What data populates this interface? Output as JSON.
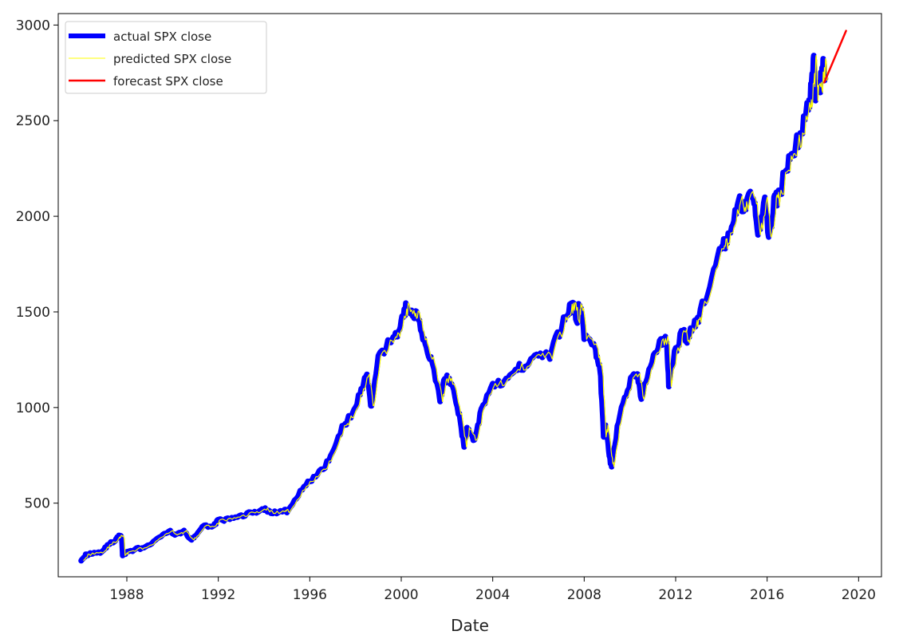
{
  "chart_data": {
    "type": "line",
    "title": "",
    "xlabel": "Date",
    "ylabel": "",
    "xlim": [
      1985.0,
      2021.0
    ],
    "ylim": [
      115,
      3060
    ],
    "x_ticks": [
      1988,
      1992,
      1996,
      2000,
      2004,
      2008,
      2012,
      2016,
      2020
    ],
    "y_ticks": [
      500,
      1000,
      1500,
      2000,
      2500,
      3000
    ],
    "grid": false,
    "legend": {
      "position": "upper-left"
    },
    "series": [
      {
        "name": "actual SPX close",
        "color": "#0000ff",
        "points": [
          [
            1986.0,
            205
          ],
          [
            1986.2,
            228
          ],
          [
            1986.5,
            240
          ],
          [
            1986.9,
            245
          ],
          [
            1987.2,
            285
          ],
          [
            1987.5,
            305
          ],
          [
            1987.65,
            330
          ],
          [
            1987.78,
            320
          ],
          [
            1987.82,
            228
          ],
          [
            1988.0,
            245
          ],
          [
            1988.5,
            262
          ],
          [
            1989.0,
            278
          ],
          [
            1989.5,
            330
          ],
          [
            1989.9,
            350
          ],
          [
            1990.2,
            335
          ],
          [
            1990.5,
            358
          ],
          [
            1990.8,
            305
          ],
          [
            1991.0,
            330
          ],
          [
            1991.3,
            375
          ],
          [
            1991.8,
            385
          ],
          [
            1992.0,
            410
          ],
          [
            1992.5,
            415
          ],
          [
            1993.0,
            435
          ],
          [
            1993.5,
            450
          ],
          [
            1994.0,
            470
          ],
          [
            1994.3,
            450
          ],
          [
            1994.8,
            455
          ],
          [
            1995.0,
            460
          ],
          [
            1995.5,
            545
          ],
          [
            1996.0,
            615
          ],
          [
            1996.5,
            665
          ],
          [
            1997.0,
            760
          ],
          [
            1997.5,
            915
          ],
          [
            1997.8,
            950
          ],
          [
            1998.2,
            1080
          ],
          [
            1998.5,
            1170
          ],
          [
            1998.7,
            990
          ],
          [
            1999.0,
            1250
          ],
          [
            1999.5,
            1350
          ],
          [
            1999.8,
            1370
          ],
          [
            2000.0,
            1450
          ],
          [
            2000.2,
            1520
          ],
          [
            2000.5,
            1480
          ],
          [
            2000.7,
            1510
          ],
          [
            2001.0,
            1350
          ],
          [
            2001.3,
            1250
          ],
          [
            2001.7,
            1040
          ],
          [
            2001.9,
            1150
          ],
          [
            2002.2,
            1140
          ],
          [
            2002.5,
            980
          ],
          [
            2002.75,
            800
          ],
          [
            2002.9,
            900
          ],
          [
            2003.2,
            820
          ],
          [
            2003.5,
            990
          ],
          [
            2004.0,
            1130
          ],
          [
            2004.5,
            1120
          ],
          [
            2005.0,
            1200
          ],
          [
            2005.5,
            1230
          ],
          [
            2006.0,
            1280
          ],
          [
            2006.5,
            1270
          ],
          [
            2007.0,
            1420
          ],
          [
            2007.3,
            1510
          ],
          [
            2007.5,
            1530
          ],
          [
            2007.7,
            1470
          ],
          [
            2007.8,
            1560
          ],
          [
            2008.0,
            1380
          ],
          [
            2008.5,
            1300
          ],
          [
            2008.7,
            1200
          ],
          [
            2008.85,
            850
          ],
          [
            2008.95,
            900
          ],
          [
            2009.1,
            750
          ],
          [
            2009.2,
            690
          ],
          [
            2009.5,
            930
          ],
          [
            2009.9,
            1110
          ],
          [
            2010.3,
            1190
          ],
          [
            2010.5,
            1040
          ],
          [
            2010.9,
            1230
          ],
          [
            2011.3,
            1340
          ],
          [
            2011.6,
            1350
          ],
          [
            2011.7,
            1130
          ],
          [
            2012.0,
            1300
          ],
          [
            2012.3,
            1400
          ],
          [
            2012.5,
            1360
          ],
          [
            2012.8,
            1440
          ],
          [
            2013.0,
            1470
          ],
          [
            2013.5,
            1640
          ],
          [
            2014.0,
            1830
          ],
          [
            2014.2,
            1870
          ],
          [
            2014.5,
            1960
          ],
          [
            2014.8,
            2070
          ],
          [
            2015.0,
            2050
          ],
          [
            2015.4,
            2120
          ],
          [
            2015.6,
            1900
          ],
          [
            2015.9,
            2080
          ],
          [
            2016.1,
            1880
          ],
          [
            2016.3,
            2080
          ],
          [
            2016.5,
            2100
          ],
          [
            2016.9,
            2270
          ],
          [
            2017.2,
            2360
          ],
          [
            2017.5,
            2430
          ],
          [
            2017.8,
            2580
          ],
          [
            2017.97,
            2700
          ],
          [
            2018.05,
            2870
          ],
          [
            2018.12,
            2640
          ],
          [
            2018.3,
            2660
          ],
          [
            2018.45,
            2780
          ],
          [
            2018.55,
            2720
          ]
        ]
      },
      {
        "name": "predicted SPX close",
        "color": "#ffff00"
      },
      {
        "name": "forecast SPX close",
        "color": "#ff0000",
        "points": [
          [
            2018.5,
            2700
          ],
          [
            2019.45,
            2970
          ]
        ]
      }
    ]
  }
}
